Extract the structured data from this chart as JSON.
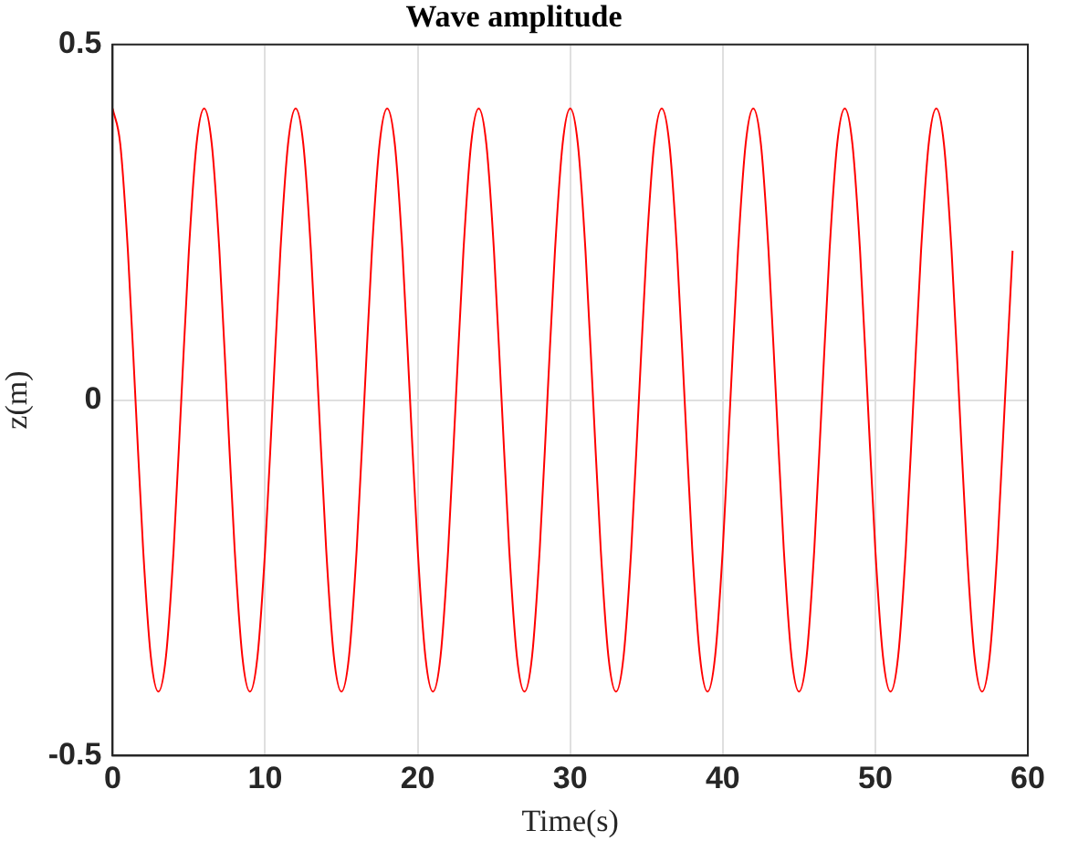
{
  "chart_data": {
    "type": "line",
    "title": "Wave amplitude",
    "xlabel": "Time(s)",
    "ylabel": "z(m)",
    "x": [
      0,
      0.5,
      1,
      1.5,
      2,
      2.5,
      3,
      3.5,
      4,
      4.5,
      5,
      5.5,
      6,
      6.5,
      7,
      7.5,
      8,
      8.5,
      9,
      9.5,
      10,
      10.5,
      11,
      11.5,
      12,
      12.5,
      13,
      13.5,
      14,
      14.5,
      15,
      15.5,
      16,
      16.5,
      17,
      17.5,
      18,
      18.5,
      19,
      19.5,
      20,
      20.5,
      21,
      21.5,
      22,
      22.5,
      23,
      23.5,
      24,
      24.5,
      25,
      25.5,
      26,
      26.5,
      27,
      27.5,
      28,
      28.5,
      29,
      29.5,
      30,
      30.5,
      31,
      31.5,
      32,
      32.5,
      33,
      33.5,
      34,
      34.5,
      35,
      35.5,
      36,
      36.5,
      37,
      37.5,
      38,
      38.5,
      39,
      39.5,
      40,
      40.5,
      41,
      41.5,
      42,
      42.5,
      43,
      43.5,
      44,
      44.5,
      45,
      45.5,
      46,
      46.5,
      47,
      47.5,
      48,
      48.5,
      49,
      49.5,
      50,
      50.5,
      51,
      51.5,
      52,
      52.5,
      53,
      53.5,
      54,
      54.5,
      55,
      55.5,
      56,
      56.5,
      57,
      57.5,
      58,
      58.5,
      59
    ],
    "series": [
      {
        "color": "#ff0000",
        "values": [
          0.41,
          0.36,
          0.21,
          0,
          -0.21,
          -0.36,
          -0.41,
          -0.36,
          -0.21,
          0,
          0.21,
          0.36,
          0.41,
          0.36,
          0.21,
          0,
          -0.21,
          -0.36,
          -0.41,
          -0.36,
          -0.21,
          0,
          0.21,
          0.36,
          0.41,
          0.36,
          0.21,
          0,
          -0.21,
          -0.36,
          -0.41,
          -0.36,
          -0.21,
          0,
          0.21,
          0.36,
          0.41,
          0.36,
          0.21,
          0,
          -0.21,
          -0.36,
          -0.41,
          -0.36,
          -0.21,
          0,
          0.21,
          0.36,
          0.41,
          0.36,
          0.21,
          0,
          -0.21,
          -0.36,
          -0.41,
          -0.36,
          -0.21,
          0,
          0.21,
          0.36,
          0.41,
          0.36,
          0.21,
          0,
          -0.21,
          -0.36,
          -0.41,
          -0.36,
          -0.21,
          0,
          0.21,
          0.36,
          0.41,
          0.36,
          0.21,
          0,
          -0.21,
          -0.36,
          -0.41,
          -0.36,
          -0.21,
          0,
          0.21,
          0.36,
          0.41,
          0.36,
          0.21,
          0,
          -0.21,
          -0.36,
          -0.41,
          -0.36,
          -0.21,
          0,
          0.21,
          0.36,
          0.41,
          0.36,
          0.21,
          0,
          -0.21,
          -0.36,
          -0.41,
          -0.36,
          -0.21,
          0,
          0.21,
          0.36,
          0.41,
          0.36,
          0.21,
          0,
          -0.21,
          -0.36,
          -0.41,
          -0.36,
          -0.21,
          0,
          0.21
        ]
      }
    ],
    "xlim": [
      0,
      60
    ],
    "xticks": [
      0,
      10,
      20,
      30,
      40,
      50,
      60
    ],
    "ylim": [
      -0.5,
      0.5
    ],
    "yticks": [
      -0.5,
      0,
      0.5
    ],
    "grid": true,
    "legend": false,
    "marker": "none",
    "line_style": "solid"
  }
}
